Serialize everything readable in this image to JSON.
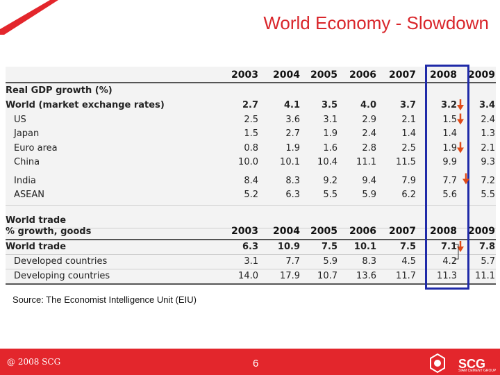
{
  "slide": {
    "title": "World Economy - Slowdown",
    "source": "Source: The Economist Intelligence Unit (EIU)",
    "copyright": "@ 2008 SCG",
    "page_number": "6",
    "logo_text": "SCG",
    "logo_subtext": "SIAM CEMENT GROUP",
    "highlight_color": "#1f2aa8",
    "accent_color": "#e3262c"
  },
  "gdp_table": {
    "years": [
      "2003",
      "2004",
      "2005",
      "2006",
      "2007",
      "2008",
      "2009"
    ],
    "section_title": "Real GDP growth (%)",
    "rows": [
      {
        "label": "World (market exchange rates)",
        "values": [
          "2.7",
          "4.1",
          "3.5",
          "4.0",
          "3.7",
          "3.2",
          "3.4"
        ],
        "bold": true,
        "indent": false,
        "arrow": true
      },
      {
        "label": "US",
        "values": [
          "2.5",
          "3.6",
          "3.1",
          "2.9",
          "2.1",
          "1.5",
          "2.4"
        ],
        "bold": false,
        "indent": true,
        "arrow": true
      },
      {
        "label": "Japan",
        "values": [
          "1.5",
          "2.7",
          "1.9",
          "2.4",
          "1.4",
          "1.4",
          "1.3"
        ],
        "bold": false,
        "indent": true,
        "arrow": false
      },
      {
        "label": "Euro area",
        "values": [
          "0.8",
          "1.9",
          "1.6",
          "2.8",
          "2.5",
          "1.9",
          "2.1"
        ],
        "bold": false,
        "indent": true,
        "arrow": true
      },
      {
        "label": "China",
        "values": [
          "10.0",
          "10.1",
          "10.4",
          "11.1",
          "11.5",
          "9.9",
          "9.3"
        ],
        "bold": false,
        "indent": true,
        "arrow": false
      },
      {
        "label": "India",
        "values": [
          "8.4",
          "8.3",
          "9.2",
          "9.4",
          "7.9",
          "7.7",
          "7.2"
        ],
        "bold": false,
        "indent": true,
        "arrow": true
      },
      {
        "label": "ASEAN",
        "values": [
          "5.2",
          "6.3",
          "5.5",
          "5.9",
          "6.2",
          "5.6",
          "5.5"
        ],
        "bold": false,
        "indent": true,
        "arrow": false
      }
    ]
  },
  "trade_table": {
    "section_title": "World trade",
    "subtitle": "% growth, goods",
    "years": [
      "2003",
      "2004",
      "2005",
      "2006",
      "2007",
      "2008",
      "2009"
    ],
    "rows": [
      {
        "label": "World trade",
        "values": [
          "6.3",
          "10.9",
          "7.5",
          "10.1",
          "7.5",
          "7.1",
          "7.8"
        ],
        "bold": true,
        "indent": false,
        "arrow": true
      },
      {
        "label": "Developed countries",
        "values": [
          "3.1",
          "7.7",
          "5.9",
          "8.3",
          "4.5",
          "4.2",
          "5.7"
        ],
        "bold": false,
        "indent": true,
        "arrow": false
      },
      {
        "label": "Developing countries",
        "values": [
          "14.0",
          "17.9",
          "10.7",
          "13.6",
          "11.7",
          "11.3",
          "11.1"
        ],
        "bold": false,
        "indent": true,
        "arrow": false
      }
    ]
  }
}
